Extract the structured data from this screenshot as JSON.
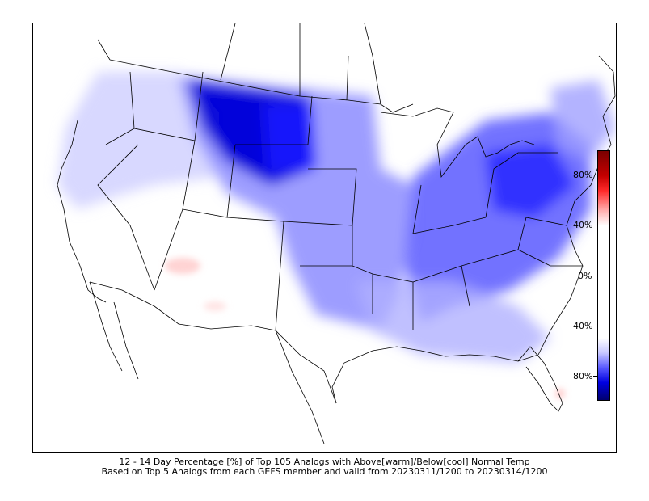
{
  "caption": {
    "line1": "12 - 14 Day Percentage [%] of Top 105 Analogs with Above[warm]/Below[cool] Normal Temp",
    "line2": "Based on Top 5 Analogs from each GEFS member and valid from 20230311/1200 to 20230314/1200"
  },
  "colorbar": {
    "labels": [
      "80%",
      "40%",
      "0%",
      "40%",
      "80%"
    ],
    "warm_color": "#c40000",
    "cool_color": "#0000e0"
  },
  "colors": {
    "cold_core": "#0000d8",
    "cold_mid": "#3c3cff",
    "cold_light": "#b4b4ff",
    "warm_light": "#ffd0d0"
  }
}
